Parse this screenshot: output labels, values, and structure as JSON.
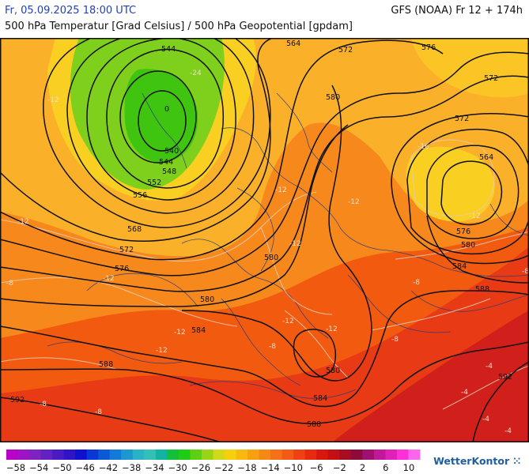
{
  "header": {
    "datetime": "Fr, 05.09.2025 18:00 UTC",
    "model": "GFS (NOAA) Fr 12 + 174h",
    "subtitle": "500 hPa Temperatur [Grad Celsius] / 500 hPa Geopotential [gpdam]"
  },
  "brand": {
    "name": "WetterKontor"
  },
  "colors": {
    "deep_red": "#d11f1b",
    "red": "#e83a14",
    "orange_red": "#f25a10",
    "orange": "#f7891c",
    "amber": "#fbb02a",
    "yellow": "#f9cf22",
    "green_light": "#7fd01c",
    "green": "#3fc40f",
    "contour": "#111111",
    "temp_isoline": "#e9c9b1",
    "coast": "#263a7a"
  },
  "map": {
    "geopotential_labels": [
      {
        "text": "544",
        "id": "z544a"
      },
      {
        "text": "0",
        "id": "z0"
      },
      {
        "text": "540",
        "id": "z540"
      },
      {
        "text": "544",
        "id": "z544b"
      },
      {
        "text": "548",
        "id": "z548"
      },
      {
        "text": "552",
        "id": "z552"
      },
      {
        "text": "556",
        "id": "z556"
      },
      {
        "text": "564",
        "id": "z564a"
      },
      {
        "text": "568",
        "id": "z568"
      },
      {
        "text": "572",
        "id": "z572a"
      },
      {
        "text": "576",
        "id": "z576a"
      },
      {
        "text": "580",
        "id": "z580a"
      },
      {
        "text": "580",
        "id": "z580b"
      },
      {
        "text": "584",
        "id": "z584a"
      },
      {
        "text": "588",
        "id": "z588a"
      },
      {
        "text": "592",
        "id": "z592a"
      },
      {
        "text": "584",
        "id": "z584b"
      },
      {
        "text": "588",
        "id": "z588b"
      },
      {
        "text": "580",
        "id": "z580c"
      },
      {
        "text": "572",
        "id": "z572b"
      },
      {
        "text": "576",
        "id": "z576b"
      },
      {
        "text": "572",
        "id": "z572c"
      },
      {
        "text": "580",
        "id": "z580d"
      },
      {
        "text": "572",
        "id": "z572d"
      },
      {
        "text": "564",
        "id": "z564b"
      },
      {
        "text": "576",
        "id": "z576c"
      },
      {
        "text": "580",
        "id": "z580e"
      },
      {
        "text": "584",
        "id": "z584c"
      },
      {
        "text": "588",
        "id": "z588c"
      },
      {
        "text": "592",
        "id": "z592b"
      }
    ],
    "temperature_labels": [
      {
        "text": "-24",
        "id": "t1"
      },
      {
        "text": "-12",
        "id": "t2"
      },
      {
        "text": "-12",
        "id": "t3"
      },
      {
        "text": "-12",
        "id": "t4"
      },
      {
        "text": "-12",
        "id": "t5"
      },
      {
        "text": "-8",
        "id": "t6"
      },
      {
        "text": "-12",
        "id": "t7"
      },
      {
        "text": "-12",
        "id": "t8"
      },
      {
        "text": "-12",
        "id": "t9"
      },
      {
        "text": "-12",
        "id": "t10"
      },
      {
        "text": "-8",
        "id": "t11"
      },
      {
        "text": "-8",
        "id": "t12"
      },
      {
        "text": "-4",
        "id": "t13"
      },
      {
        "text": "-8",
        "id": "t14"
      },
      {
        "text": "-4",
        "id": "t15"
      },
      {
        "text": "-8",
        "id": "t16"
      },
      {
        "text": "-12",
        "id": "t17"
      },
      {
        "text": "-16",
        "id": "t18"
      },
      {
        "text": "-12",
        "id": "t19"
      },
      {
        "text": "-12",
        "id": "t20"
      },
      {
        "text": "-8",
        "id": "t21"
      },
      {
        "text": "-8",
        "id": "t22"
      },
      {
        "text": "-4",
        "id": "t23"
      },
      {
        "text": "-4",
        "id": "t24"
      }
    ]
  },
  "legend": {
    "labels": [
      "-58",
      "-54",
      "-50",
      "-46",
      "-42",
      "-38",
      "-34",
      "-30",
      "-26",
      "-22",
      "-18",
      "-14",
      "-10",
      "-6",
      "-2",
      "2",
      "6",
      "10"
    ],
    "swatches": [
      "#b800c8",
      "#9d14c4",
      "#7e22c0",
      "#6221c0",
      "#4a1bc4",
      "#2e16c8",
      "#1010d0",
      "#0838d6",
      "#0a5ad8",
      "#127ad8",
      "#1c98d0",
      "#2ab2c6",
      "#34c0b8",
      "#10b4a0",
      "#12c03a",
      "#1fcb14",
      "#5ecf12",
      "#9ad416",
      "#d2d81a",
      "#f6d00e",
      "#f8b80f",
      "#f8a010",
      "#f68914",
      "#f57016",
      "#f35a14",
      "#ef4212",
      "#e82a10",
      "#d8180e",
      "#c40f14",
      "#a80c22",
      "#8e0a3a",
      "#a01070",
      "#c01898",
      "#e020b8",
      "#ff30d8",
      "#ff66ee"
    ]
  }
}
